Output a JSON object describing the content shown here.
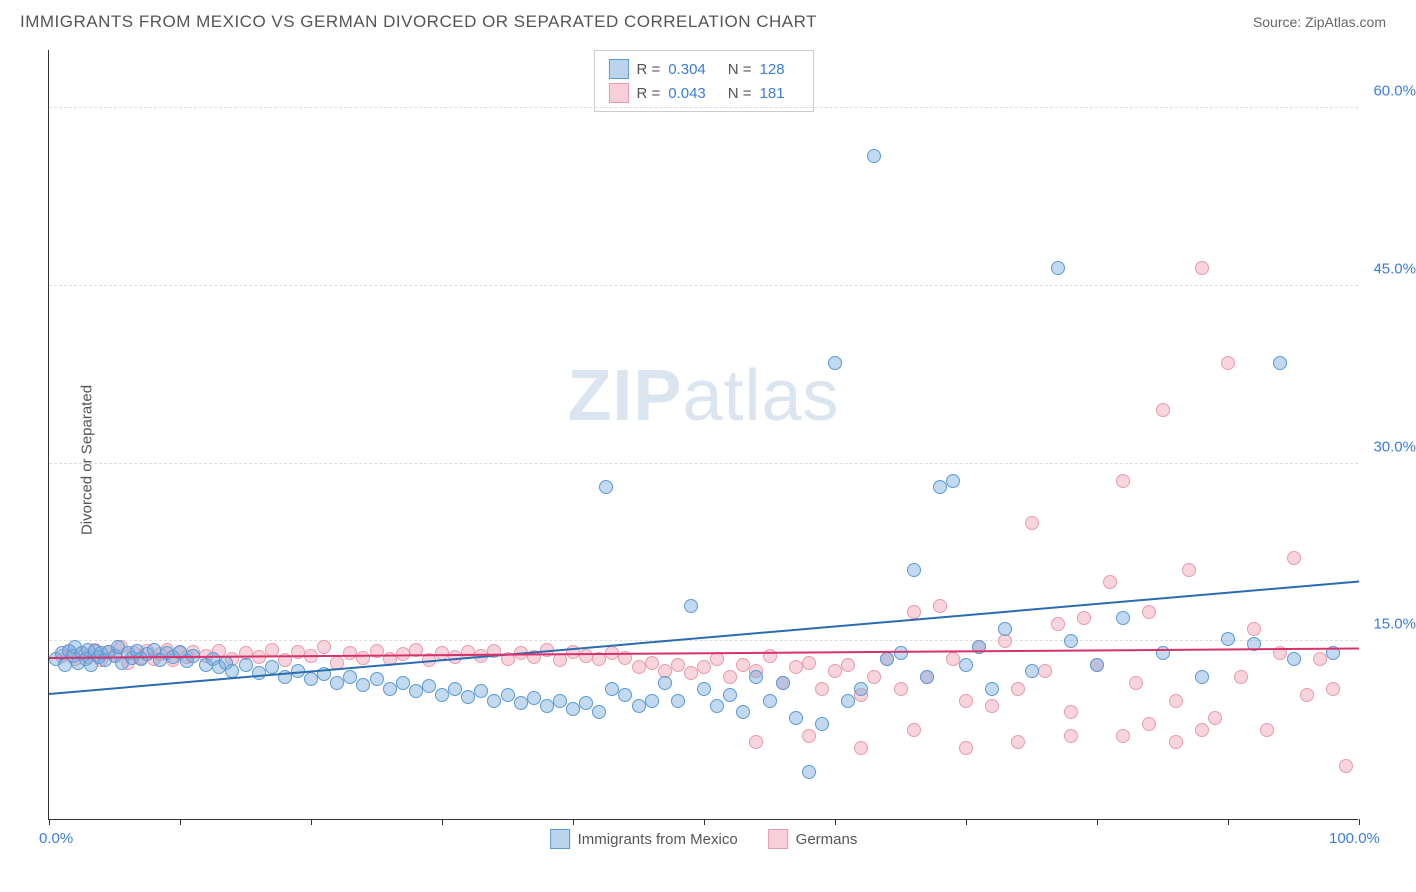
{
  "title": "IMMIGRANTS FROM MEXICO VS GERMAN DIVORCED OR SEPARATED CORRELATION CHART",
  "source": "Source: ZipAtlas.com",
  "watermark_zip": "ZIP",
  "watermark_atlas": "atlas",
  "chart": {
    "type": "scatter",
    "background_color": "#ffffff",
    "grid_color": "#dddddd",
    "xlim": [
      0,
      100
    ],
    "ylim": [
      0,
      65
    ],
    "xtick_positions": [
      0,
      10,
      20,
      30,
      40,
      50,
      60,
      70,
      80,
      90,
      100
    ],
    "xtick_labels": {
      "0": "0.0%",
      "100": "100.0%"
    },
    "ytick_positions": [
      15,
      30,
      45,
      60
    ],
    "ytick_labels": {
      "15": "15.0%",
      "30": "30.0%",
      "45": "45.0%",
      "60": "60.0%"
    },
    "yaxis_label": "Divorced or Separated",
    "title_fontsize": 17,
    "label_fontsize": 15,
    "tick_fontsize": 15,
    "marker_size": 14,
    "line_width": 2
  },
  "legend_top": {
    "rows": [
      {
        "swatch": "blue",
        "r_label": "R =",
        "r_value": "0.304",
        "n_label": "N =",
        "n_value": "128"
      },
      {
        "swatch": "pink",
        "r_label": "R =",
        "r_value": "0.043",
        "n_label": "N =",
        "n_value": "181"
      }
    ]
  },
  "legend_bottom": {
    "items": [
      {
        "swatch": "blue",
        "label": "Immigrants from Mexico"
      },
      {
        "swatch": "pink",
        "label": "Germans"
      }
    ]
  },
  "series": {
    "blue": {
      "color": "#78aadc",
      "border": "#5a9bd5",
      "trend": {
        "x1": 0,
        "y1": 10.5,
        "x2": 100,
        "y2": 20,
        "color": "#2b6cb0"
      },
      "points": [
        [
          0.5,
          13.5
        ],
        [
          1,
          14
        ],
        [
          1.2,
          13
        ],
        [
          1.5,
          14.2
        ],
        [
          1.8,
          13.8
        ],
        [
          2,
          14.5
        ],
        [
          2.2,
          13.2
        ],
        [
          2.5,
          14
        ],
        [
          2.8,
          13.5
        ],
        [
          3,
          14.3
        ],
        [
          3.2,
          13
        ],
        [
          3.5,
          14.2
        ],
        [
          3.8,
          13.7
        ],
        [
          4,
          14
        ],
        [
          4.3,
          13.4
        ],
        [
          4.6,
          14.1
        ],
        [
          5,
          13.8
        ],
        [
          5.3,
          14.5
        ],
        [
          5.6,
          13.2
        ],
        [
          6,
          14
        ],
        [
          6.3,
          13.6
        ],
        [
          6.7,
          14.2
        ],
        [
          7,
          13.5
        ],
        [
          7.5,
          13.9
        ],
        [
          8,
          14.3
        ],
        [
          8.5,
          13.4
        ],
        [
          9,
          14
        ],
        [
          9.5,
          13.7
        ],
        [
          10,
          14.1
        ],
        [
          10.5,
          13.3
        ],
        [
          11,
          13.8
        ],
        [
          12,
          13
        ],
        [
          12.5,
          13.5
        ],
        [
          13,
          12.8
        ],
        [
          13.5,
          13.2
        ],
        [
          14,
          12.5
        ],
        [
          15,
          13
        ],
        [
          16,
          12.3
        ],
        [
          17,
          12.8
        ],
        [
          18,
          12
        ],
        [
          19,
          12.5
        ],
        [
          20,
          11.8
        ],
        [
          21,
          12.2
        ],
        [
          22,
          11.5
        ],
        [
          23,
          12
        ],
        [
          24,
          11.3
        ],
        [
          25,
          11.8
        ],
        [
          26,
          11
        ],
        [
          27,
          11.5
        ],
        [
          28,
          10.8
        ],
        [
          29,
          11.2
        ],
        [
          30,
          10.5
        ],
        [
          31,
          11
        ],
        [
          32,
          10.3
        ],
        [
          33,
          10.8
        ],
        [
          34,
          10
        ],
        [
          35,
          10.5
        ],
        [
          36,
          9.8
        ],
        [
          37,
          10.2
        ],
        [
          38,
          9.5
        ],
        [
          39,
          10
        ],
        [
          40,
          9.3
        ],
        [
          41,
          9.8
        ],
        [
          42,
          9
        ],
        [
          42.5,
          28
        ],
        [
          43,
          11
        ],
        [
          44,
          10.5
        ],
        [
          45,
          9.5
        ],
        [
          46,
          10
        ],
        [
          47,
          11.5
        ],
        [
          48,
          10
        ],
        [
          49,
          18
        ],
        [
          50,
          11
        ],
        [
          51,
          9.5
        ],
        [
          52,
          10.5
        ],
        [
          53,
          9
        ],
        [
          54,
          12
        ],
        [
          55,
          10
        ],
        [
          56,
          11.5
        ],
        [
          57,
          8.5
        ],
        [
          58,
          4
        ],
        [
          59,
          8
        ],
        [
          60,
          38.5
        ],
        [
          61,
          10
        ],
        [
          62,
          11
        ],
        [
          63,
          56
        ],
        [
          64,
          13.5
        ],
        [
          65,
          14
        ],
        [
          66,
          21
        ],
        [
          67,
          12
        ],
        [
          68,
          28
        ],
        [
          69,
          28.5
        ],
        [
          70,
          13
        ],
        [
          71,
          14.5
        ],
        [
          72,
          11
        ],
        [
          73,
          16
        ],
        [
          75,
          12.5
        ],
        [
          77,
          46.5
        ],
        [
          78,
          15
        ],
        [
          80,
          13
        ],
        [
          82,
          17
        ],
        [
          85,
          14
        ],
        [
          88,
          12
        ],
        [
          90,
          15.2
        ],
        [
          92,
          14.8
        ],
        [
          94,
          38.5
        ],
        [
          95,
          13.5
        ],
        [
          98,
          14
        ]
      ]
    },
    "pink": {
      "color": "#f0a0b4",
      "border": "#e89ab0",
      "trend": {
        "x1": 0,
        "y1": 13.5,
        "x2": 100,
        "y2": 14.3,
        "color": "#d6336c"
      },
      "points": [
        [
          1,
          13.8
        ],
        [
          1.5,
          14.2
        ],
        [
          2,
          13.5
        ],
        [
          2.5,
          14
        ],
        [
          3,
          13.7
        ],
        [
          3.5,
          14.3
        ],
        [
          4,
          13.4
        ],
        [
          4.5,
          14.1
        ],
        [
          5,
          13.8
        ],
        [
          5.5,
          14.5
        ],
        [
          6,
          13.2
        ],
        [
          6.5,
          14
        ],
        [
          7,
          13.6
        ],
        [
          7.5,
          14.2
        ],
        [
          8,
          13.5
        ],
        [
          8.5,
          13.9
        ],
        [
          9,
          14.3
        ],
        [
          9.5,
          13.4
        ],
        [
          10,
          14
        ],
        [
          10.5,
          13.7
        ],
        [
          11,
          14.1
        ],
        [
          12,
          13.8
        ],
        [
          13,
          14.2
        ],
        [
          14,
          13.5
        ],
        [
          15,
          14
        ],
        [
          16,
          13.7
        ],
        [
          17,
          14.3
        ],
        [
          18,
          13.4
        ],
        [
          19,
          14.1
        ],
        [
          20,
          13.8
        ],
        [
          21,
          14.5
        ],
        [
          22,
          13.2
        ],
        [
          23,
          14
        ],
        [
          24,
          13.6
        ],
        [
          25,
          14.2
        ],
        [
          26,
          13.5
        ],
        [
          27,
          13.9
        ],
        [
          28,
          14.3
        ],
        [
          29,
          13.4
        ],
        [
          30,
          14
        ],
        [
          31,
          13.7
        ],
        [
          32,
          14.1
        ],
        [
          33,
          13.8
        ],
        [
          34,
          14.2
        ],
        [
          35,
          13.5
        ],
        [
          36,
          14
        ],
        [
          37,
          13.7
        ],
        [
          38,
          14.3
        ],
        [
          39,
          13.4
        ],
        [
          40,
          14.1
        ],
        [
          41,
          13.8
        ],
        [
          42,
          13.5
        ],
        [
          43,
          14
        ],
        [
          44,
          13.6
        ],
        [
          45,
          12.8
        ],
        [
          46,
          13.2
        ],
        [
          47,
          12.5
        ],
        [
          48,
          13
        ],
        [
          49,
          12.3
        ],
        [
          50,
          12.8
        ],
        [
          51,
          13.5
        ],
        [
          52,
          12
        ],
        [
          53,
          13
        ],
        [
          54,
          12.5
        ],
        [
          55,
          13.8
        ],
        [
          56,
          11.5
        ],
        [
          57,
          12.8
        ],
        [
          58,
          13.2
        ],
        [
          59,
          11
        ],
        [
          60,
          12.5
        ],
        [
          61,
          13
        ],
        [
          62,
          10.5
        ],
        [
          63,
          12
        ],
        [
          64,
          13.5
        ],
        [
          65,
          11
        ],
        [
          66,
          17.5
        ],
        [
          67,
          12
        ],
        [
          68,
          18
        ],
        [
          69,
          13.5
        ],
        [
          70,
          10
        ],
        [
          71,
          14.5
        ],
        [
          72,
          9.5
        ],
        [
          73,
          15
        ],
        [
          74,
          11
        ],
        [
          75,
          25
        ],
        [
          76,
          12.5
        ],
        [
          77,
          16.5
        ],
        [
          78,
          9
        ],
        [
          79,
          17
        ],
        [
          80,
          13
        ],
        [
          81,
          20
        ],
        [
          82,
          28.5
        ],
        [
          83,
          11.5
        ],
        [
          84,
          17.5
        ],
        [
          85,
          34.5
        ],
        [
          86,
          10
        ],
        [
          87,
          21
        ],
        [
          88,
          46.5
        ],
        [
          89,
          8.5
        ],
        [
          90,
          38.5
        ],
        [
          91,
          12
        ],
        [
          92,
          16
        ],
        [
          93,
          7.5
        ],
        [
          94,
          14
        ],
        [
          95,
          22
        ],
        [
          96,
          10.5
        ],
        [
          97,
          13.5
        ],
        [
          98,
          11
        ],
        [
          99,
          4.5
        ],
        [
          82,
          7
        ],
        [
          84,
          8
        ],
        [
          86,
          6.5
        ],
        [
          88,
          7.5
        ],
        [
          78,
          7
        ],
        [
          74,
          6.5
        ],
        [
          70,
          6
        ],
        [
          66,
          7.5
        ],
        [
          62,
          6
        ],
        [
          58,
          7
        ],
        [
          54,
          6.5
        ]
      ]
    }
  }
}
